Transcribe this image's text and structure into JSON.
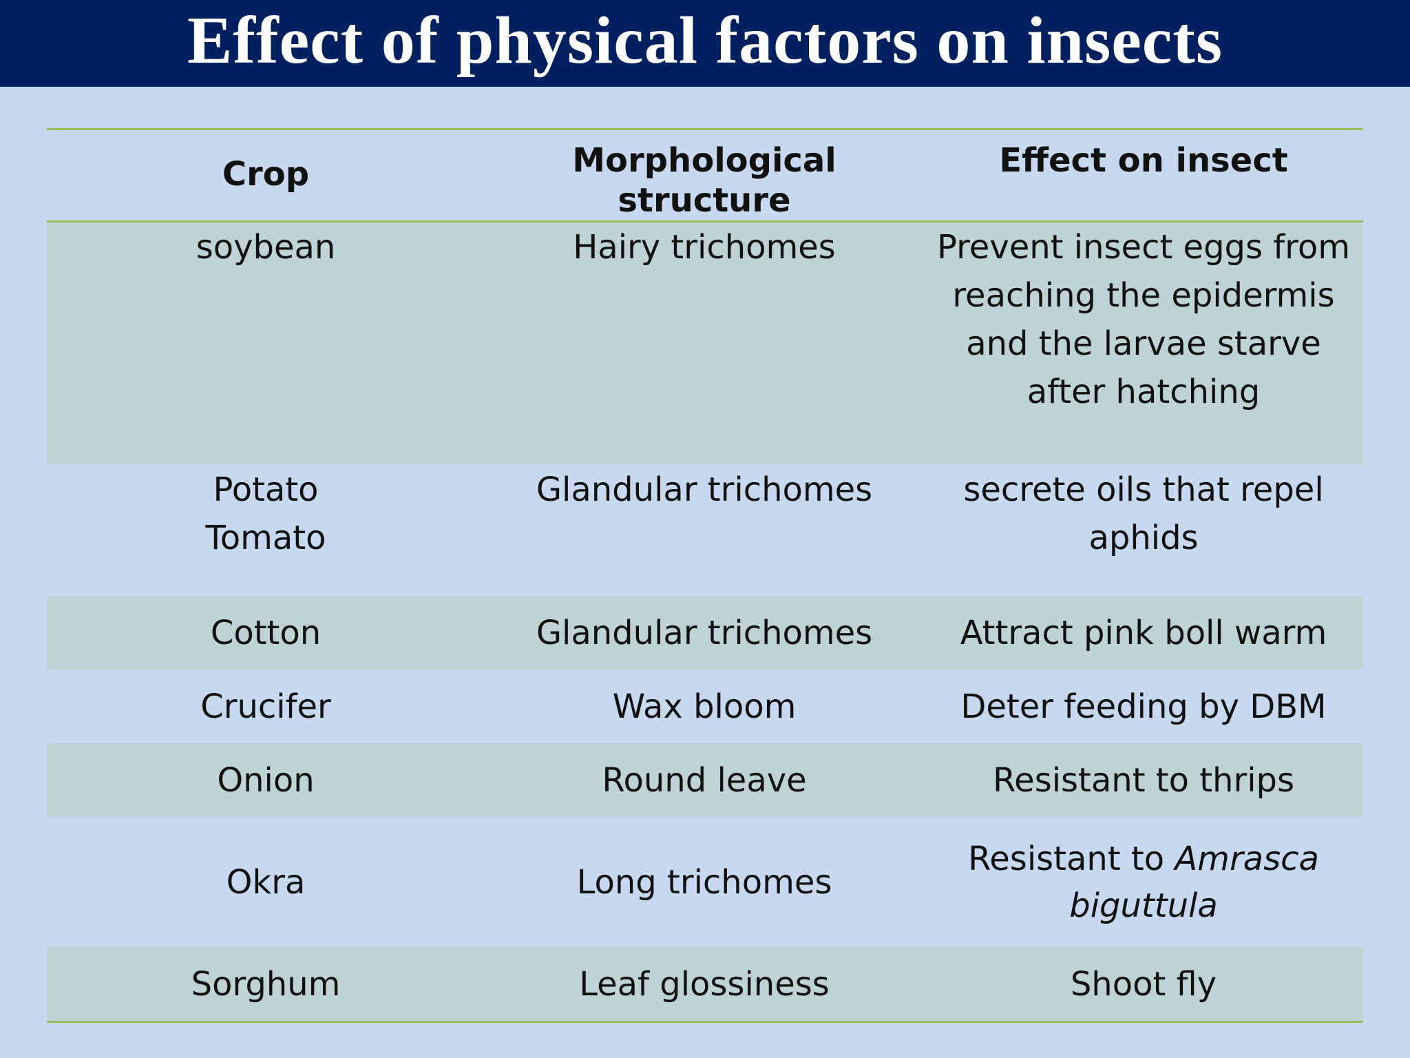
{
  "title": "Effect of physical factors on insects",
  "table": {
    "headers": {
      "crop": "Crop",
      "structure": "Morphological structure",
      "effect": "Effect on insect"
    },
    "rows": [
      {
        "crop_lines": [
          "soybean"
        ],
        "structure": "Hairy trichomes",
        "effect_lines": [
          "Prevent insect eggs from",
          "reaching the epidermis",
          "and the larvae starve",
          "after hatching"
        ]
      },
      {
        "crop_lines": [
          "Potato",
          "Tomato"
        ],
        "structure": "Glandular trichomes",
        "effect_lines": [
          "secrete oils that repel",
          "aphids"
        ]
      },
      {
        "crop_lines": [
          "Cotton"
        ],
        "structure": "Glandular trichomes",
        "effect_lines": [
          "Attract pink boll warm"
        ]
      },
      {
        "crop_lines": [
          "Crucifer"
        ],
        "structure": "Wax bloom",
        "effect_lines": [
          "Deter feeding by DBM"
        ]
      },
      {
        "crop_lines": [
          "Onion"
        ],
        "structure": "Round leave",
        "effect_lines": [
          "Resistant to thrips"
        ]
      },
      {
        "crop_lines": [
          "Okra"
        ],
        "structure": "Long trichomes",
        "effect_prefix": "Resistant to ",
        "effect_italic_1": "Amrasca",
        "effect_italic_2": "biguttula"
      },
      {
        "crop_lines": [
          "Sorghum"
        ],
        "structure": "Leaf glossiness",
        "effect_lines": [
          "Shoot fly"
        ]
      }
    ]
  },
  "colors": {
    "title_bar": "#002060",
    "background": "#c6d9f1",
    "shaded_row": "#bed3d5",
    "rule_lines": "#9bbb59"
  }
}
